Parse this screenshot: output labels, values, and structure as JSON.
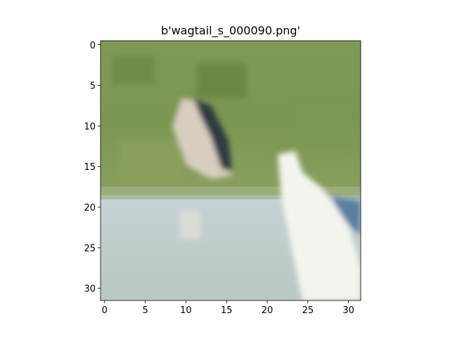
{
  "chart_data": {
    "type": "image",
    "title": "b'wagtail_s_000090.png'",
    "xlim": [
      -0.5,
      31.5
    ],
    "ylim": [
      31.5,
      -0.5
    ],
    "xticks": [
      0,
      5,
      10,
      15,
      20,
      25,
      30
    ],
    "yticks": [
      0,
      5,
      10,
      15,
      20,
      25,
      30
    ]
  }
}
